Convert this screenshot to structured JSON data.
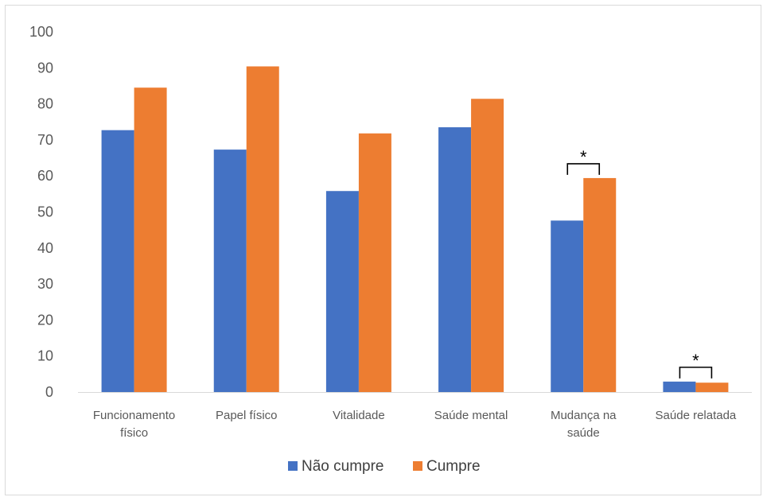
{
  "chart_data": {
    "type": "bar",
    "categories": [
      [
        "Funcionamento",
        "físico"
      ],
      [
        "Papel físico"
      ],
      [
        "Vitalidade"
      ],
      [
        "Saúde mental"
      ],
      [
        "Mudança na",
        "saúde"
      ],
      [
        "Saúde relatada"
      ]
    ],
    "series": [
      {
        "name": "Não cumpre",
        "color": "#4472c4",
        "values": [
          72.7,
          67.3,
          55.8,
          73.5,
          47.6,
          2.9
        ]
      },
      {
        "name": "Cumpre",
        "color": "#ed7d31",
        "values": [
          84.5,
          90.4,
          71.8,
          81.4,
          59.4,
          2.6
        ]
      }
    ],
    "ylim": [
      0,
      100
    ],
    "yticks": [
      0,
      10,
      20,
      30,
      40,
      50,
      60,
      70,
      80,
      90,
      100
    ],
    "grid": false,
    "legend": "bottom",
    "annotations": [
      {
        "category_index": 4,
        "text": "*"
      },
      {
        "category_index": 5,
        "text": "*"
      }
    ]
  }
}
